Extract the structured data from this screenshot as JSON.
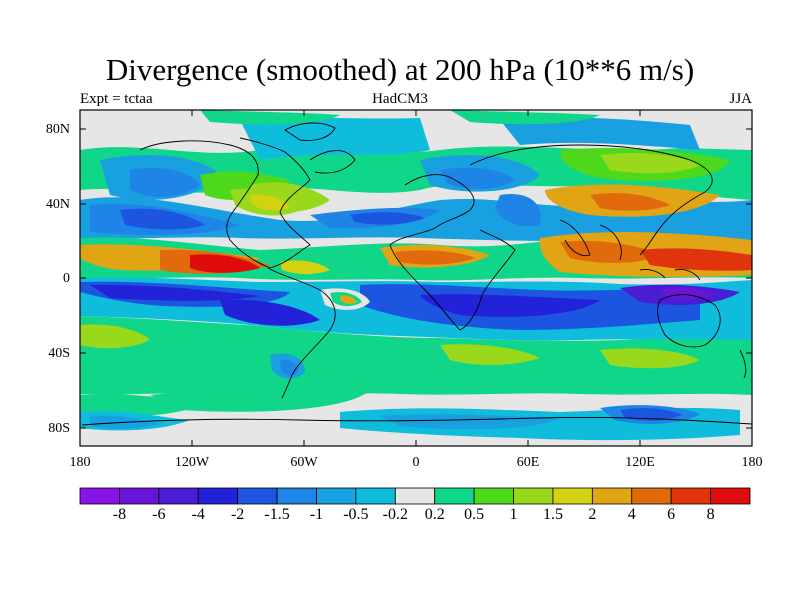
{
  "header": {
    "title": "Divergence (smoothed) at 200 hPa (10**6 m/s)",
    "left_label": "Expt = tctaa",
    "center_label": "HadCM3",
    "right_label": "JJA"
  },
  "axes": {
    "y_ticks": [
      "80N",
      "40N",
      "0",
      "40S",
      "80S"
    ],
    "x_ticks": [
      "180",
      "120W",
      "60W",
      "0",
      "60E",
      "120E",
      "180"
    ]
  },
  "colorbar": {
    "labels": [
      "-8",
      "-6",
      "-4",
      "-2",
      "-1.5",
      "-1",
      "-0.5",
      "-0.2",
      "0.2",
      "0.5",
      "1",
      "1.5",
      "2",
      "4",
      "6",
      "8"
    ],
    "colors": [
      "#8a14e6",
      "#6a14d9",
      "#4a1cd4",
      "#2222d8",
      "#1c56e0",
      "#1e84e6",
      "#18a0e0",
      "#10bcdc",
      "#e6e6e6",
      "#10d68a",
      "#4ed81c",
      "#9ad81c",
      "#d2d210",
      "#e0a414",
      "#e06a0c",
      "#e0340c",
      "#e00c0c"
    ]
  },
  "map": {
    "projection": "cylindrical equidistant",
    "background_color": "#e6e6e6",
    "region": "global, 180W to 180E, 90S to 90N"
  }
}
